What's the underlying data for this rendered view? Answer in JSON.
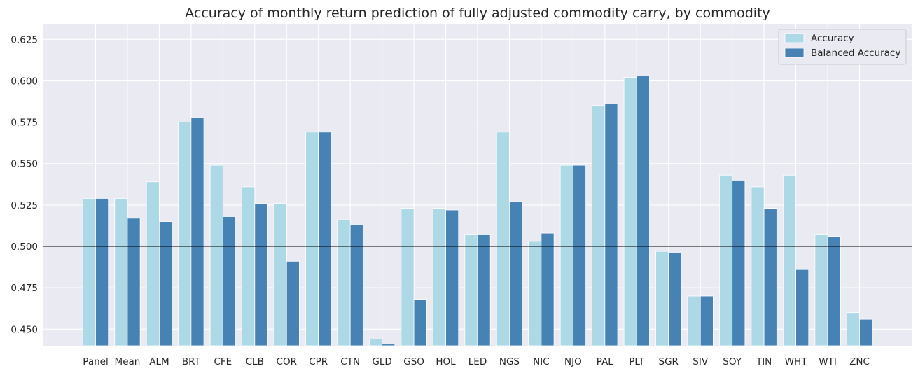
{
  "chart_data": {
    "type": "bar",
    "title": "Accuracy of monthly return prediction of fully adjusted commodity carry, by commodity",
    "xlabel": "",
    "ylabel": "",
    "ylim": [
      0.44,
      0.634
    ],
    "yticks": [
      0.45,
      0.475,
      0.5,
      0.525,
      0.55,
      0.575,
      0.6,
      0.625
    ],
    "reference_line": 0.5,
    "grid": true,
    "legend_position": "top-right",
    "categories": [
      "Panel",
      "Mean",
      "ALM",
      "BRT",
      "CFE",
      "CLB",
      "COR",
      "CPR",
      "CTN",
      "GLD",
      "GSO",
      "HOL",
      "LED",
      "NGS",
      "NIC",
      "NJO",
      "PAL",
      "PLT",
      "SGR",
      "SIV",
      "SOY",
      "TIN",
      "WHT",
      "WTI",
      "ZNC"
    ],
    "series": [
      {
        "name": "Accuracy",
        "color": "#add8e6",
        "values": [
          0.529,
          0.529,
          0.539,
          0.575,
          0.549,
          0.536,
          0.526,
          0.569,
          0.516,
          0.444,
          0.523,
          0.523,
          0.507,
          0.569,
          0.503,
          0.549,
          0.585,
          0.602,
          0.497,
          0.47,
          0.543,
          0.536,
          0.543,
          0.507,
          0.46
        ]
      },
      {
        "name": "Balanced Accuracy",
        "color": "#4682b4",
        "values": [
          0.529,
          0.517,
          0.515,
          0.578,
          0.518,
          0.526,
          0.491,
          0.569,
          0.513,
          0.441,
          0.468,
          0.522,
          0.507,
          0.527,
          0.508,
          0.549,
          0.586,
          0.603,
          0.496,
          0.47,
          0.54,
          0.523,
          0.486,
          0.506,
          0.456
        ]
      }
    ]
  }
}
